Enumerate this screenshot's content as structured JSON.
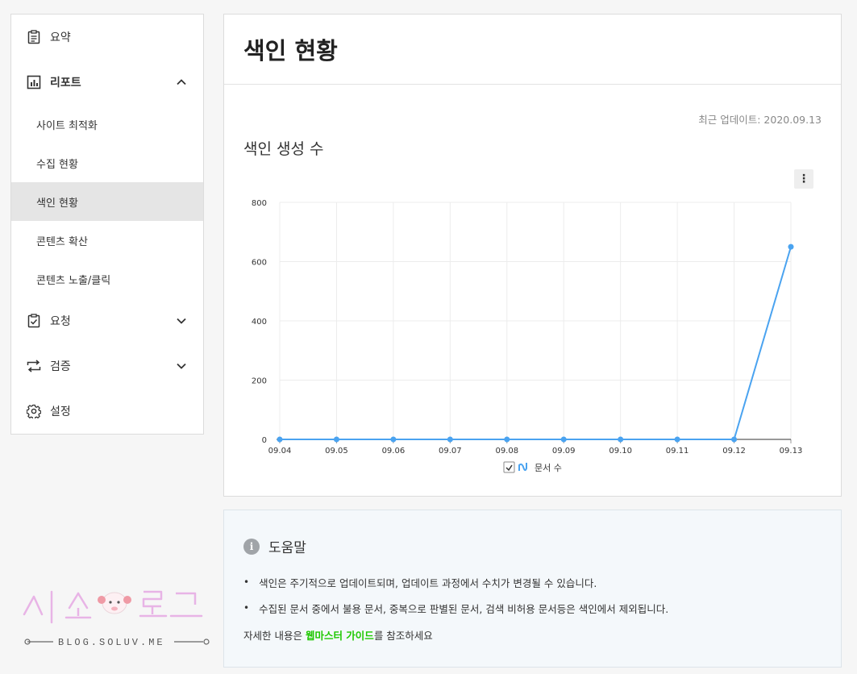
{
  "sidebar": {
    "summary": "요약",
    "report": "리포트",
    "report_items": [
      "사이트 최적화",
      "수집 현황",
      "색인 현황",
      "콘텐츠 확산",
      "콘텐츠 노출/클릭"
    ],
    "request": "요청",
    "verify": "검증",
    "settings": "설정"
  },
  "main": {
    "title": "색인 현황",
    "last_update": "최근 업데이트: 2020.09.13",
    "chart_title": "색인 생성 수",
    "more_icon": "⋮"
  },
  "chart_data": {
    "type": "line",
    "title": "색인 생성 수",
    "x": [
      "09.04",
      "09.05",
      "09.06",
      "09.07",
      "09.08",
      "09.09",
      "09.10",
      "09.11",
      "09.12",
      "09.13"
    ],
    "series": [
      {
        "name": "문서 수",
        "values": [
          0,
          0,
          0,
          0,
          0,
          0,
          0,
          0,
          0,
          650
        ],
        "color": "#4aa3f0"
      }
    ],
    "yticks": [
      0,
      200,
      400,
      600,
      800
    ],
    "ylim": [
      0,
      800
    ],
    "grid": true,
    "legend": "bottom-center"
  },
  "help": {
    "title": "도움말",
    "info_icon": "i",
    "bullets": [
      "색인은 주기적으로 업데이트되며, 업데이트 과정에서 수치가 변경될 수 있습니다.",
      "수집된 문서 중에서 불용 문서, 중복으로 판별된 문서, 검색 비허용 문서등은 색인에서 제외됩니다."
    ],
    "foot_pre": "자세한 내용은 ",
    "foot_link": "웹마스터 가이드",
    "foot_post": "를 참조하세요"
  },
  "watermark": {
    "text": "시소로그",
    "url": "BLOG.SOLUV.ME"
  }
}
